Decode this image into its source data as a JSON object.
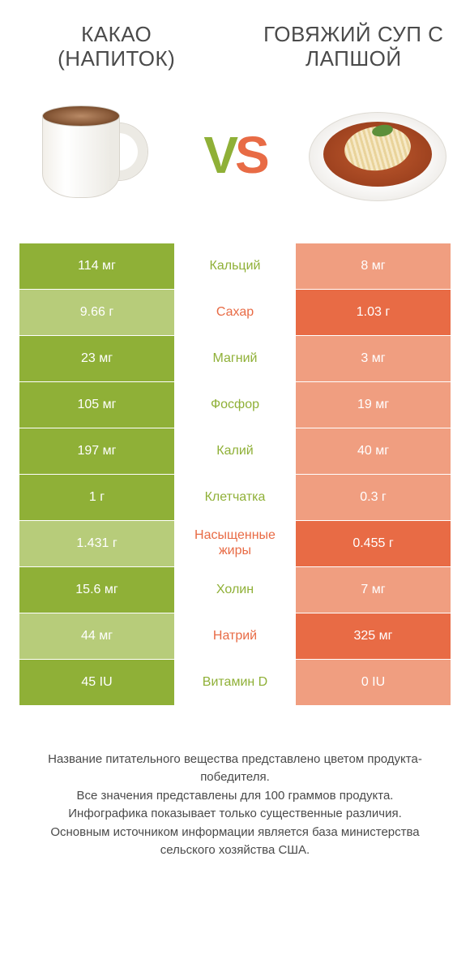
{
  "colors": {
    "green_win": "#8fb037",
    "green_lose": "#b7cc7a",
    "orange_win": "#e86b45",
    "orange_lose": "#f09e80",
    "text_gray": "#4a4a4a",
    "background": "#ffffff"
  },
  "left_product": {
    "title": "КАКАО (НАПИТОК)"
  },
  "right_product": {
    "title": "ГОВЯЖИЙ СУП С ЛАПШОЙ"
  },
  "vs": {
    "v": "V",
    "s": "S"
  },
  "rows": [
    {
      "nutrient": "Кальций",
      "left": "114 мг",
      "right": "8 мг",
      "winner": "left"
    },
    {
      "nutrient": "Сахар",
      "left": "9.66 г",
      "right": "1.03 г",
      "winner": "right"
    },
    {
      "nutrient": "Магний",
      "left": "23 мг",
      "right": "3 мг",
      "winner": "left"
    },
    {
      "nutrient": "Фосфор",
      "left": "105 мг",
      "right": "19 мг",
      "winner": "left"
    },
    {
      "nutrient": "Калий",
      "left": "197 мг",
      "right": "40 мг",
      "winner": "left"
    },
    {
      "nutrient": "Клетчатка",
      "left": "1 г",
      "right": "0.3 г",
      "winner": "left"
    },
    {
      "nutrient": "Насыщенные жиры",
      "left": "1.431 г",
      "right": "0.455 г",
      "winner": "right"
    },
    {
      "nutrient": "Холин",
      "left": "15.6 мг",
      "right": "7 мг",
      "winner": "left"
    },
    {
      "nutrient": "Натрий",
      "left": "44 мг",
      "right": "325 мг",
      "winner": "right"
    },
    {
      "nutrient": "Витамин D",
      "left": "45 IU",
      "right": "0 IU",
      "winner": "left"
    }
  ],
  "footnote": {
    "l1": "Название питательного вещества представлено цветом продукта-победителя.",
    "l2": "Все значения представлены для 100 граммов продукта.",
    "l3": "Инфографика показывает только существенные различия.",
    "l4": "Основным источником информации является база министерства сельского хозяйства США."
  }
}
